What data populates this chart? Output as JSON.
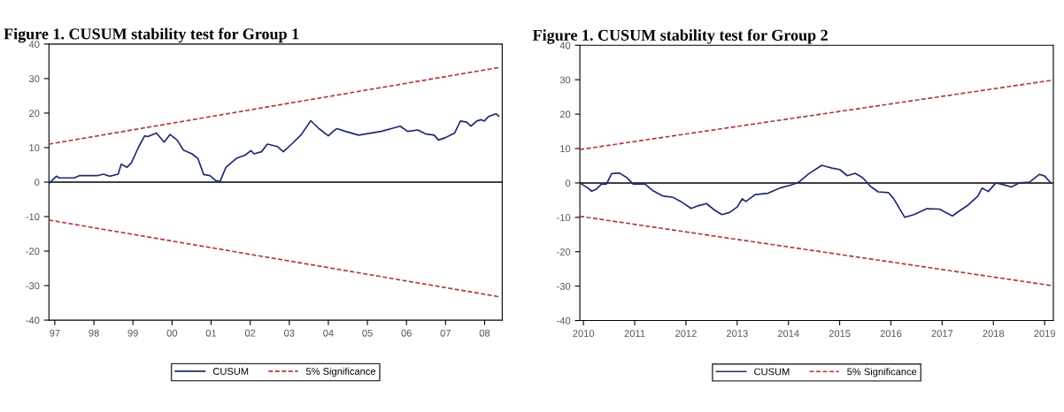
{
  "chart_data": [
    {
      "type": "line",
      "title": "Figure 1. CUSUM stability test for Group 1",
      "xlim": [
        1996.85,
        2008.45
      ],
      "xticks": [
        {
          "value": 1997,
          "label": "97"
        },
        {
          "value": 1998,
          "label": "98"
        },
        {
          "value": 1999,
          "label": "99"
        },
        {
          "value": 2000,
          "label": "00"
        },
        {
          "value": 2001,
          "label": "01"
        },
        {
          "value": 2002,
          "label": "02"
        },
        {
          "value": 2003,
          "label": "03"
        },
        {
          "value": 2004,
          "label": "04"
        },
        {
          "value": 2005,
          "label": "05"
        },
        {
          "value": 2006,
          "label": "06"
        },
        {
          "value": 2007,
          "label": "07"
        },
        {
          "value": 2008,
          "label": "08"
        }
      ],
      "ylim": [
        -40,
        40
      ],
      "yticks": [
        -40,
        -30,
        -20,
        -10,
        0,
        10,
        20,
        30,
        40
      ],
      "grid": false,
      "legend": "bottom",
      "marker": "none",
      "ref_lines": [
        {
          "axis": "y",
          "value": 0,
          "color": "#000000",
          "line_style": "solid"
        }
      ],
      "series": [
        {
          "name": "CUSUM",
          "color": "#1f2a6b",
          "line_style": "solid",
          "x": [
            1996.85,
            1997.04,
            1997.12,
            1997.49,
            1997.64,
            1998.1,
            1998.25,
            1998.4,
            1998.62,
            1998.7,
            1998.85,
            1998.96,
            1999.15,
            1999.3,
            1999.38,
            1999.6,
            1999.8,
            1999.95,
            2000.13,
            2000.29,
            2000.51,
            2000.66,
            2000.81,
            2000.97,
            2001.12,
            2001.23,
            2001.38,
            2001.65,
            2001.87,
            2002.02,
            2002.1,
            2002.29,
            2002.44,
            2002.7,
            2002.85,
            2003.08,
            2003.31,
            2003.55,
            2003.76,
            2004.0,
            2004.14,
            2004.22,
            2004.44,
            2004.78,
            2004.97,
            2005.35,
            2005.61,
            2005.84,
            2006.03,
            2006.29,
            2006.48,
            2006.71,
            2006.82,
            2007.0,
            2007.23,
            2007.38,
            2007.54,
            2007.65,
            2007.8,
            2007.91,
            2007.99,
            2008.1,
            2008.29,
            2008.36
          ],
          "values": [
            -0.4,
            1.7,
            1.2,
            1.2,
            1.9,
            1.9,
            2.3,
            1.7,
            2.3,
            5.2,
            4.3,
            5.6,
            10.3,
            13.4,
            13.2,
            14.2,
            11.6,
            13.8,
            12.2,
            9.3,
            8.2,
            6.9,
            2.2,
            1.9,
            0.4,
            0.2,
            4.3,
            6.9,
            7.8,
            9.1,
            8.2,
            8.8,
            11.0,
            10.3,
            8.8,
            11.2,
            13.8,
            17.8,
            15.5,
            13.4,
            14.9,
            15.5,
            14.7,
            13.6,
            14.0,
            14.7,
            15.5,
            16.2,
            14.7,
            15.1,
            14.0,
            13.6,
            12.2,
            12.9,
            14.2,
            17.7,
            17.4,
            16.2,
            17.7,
            18.1,
            17.7,
            19.0,
            19.8,
            19.1
          ]
        },
        {
          "name": "5% Significance",
          "color": "#b03a3a",
          "line_style": "dashed",
          "x": [
            1996.85,
            2008.36
          ],
          "values": [
            11.0,
            33.2
          ]
        },
        {
          "color": "#b03a3a",
          "line_style": "dashed",
          "x": [
            1996.85,
            2008.36
          ],
          "values": [
            -11.0,
            -33.2
          ]
        }
      ]
    },
    {
      "type": "line",
      "title": "Figure 1. CUSUM stability test for Group 2",
      "xlim": [
        2009.93,
        2019.17
      ],
      "xticks": [
        2010,
        2011,
        2012,
        2013,
        2014,
        2015,
        2016,
        2017,
        2018,
        2019
      ],
      "ylim": [
        -40,
        40
      ],
      "yticks": [
        -40,
        -30,
        -20,
        -10,
        0,
        10,
        20,
        30,
        40
      ],
      "grid": false,
      "legend": "bottom",
      "marker": "none",
      "ref_lines": [
        {
          "axis": "y",
          "value": 0,
          "color": "#000000",
          "line_style": "solid"
        }
      ],
      "series": [
        {
          "name": "CUSUM",
          "color": "#1f2a6b",
          "line_style": "solid",
          "x": [
            2009.93,
            2010.08,
            2010.16,
            2010.25,
            2010.35,
            2010.45,
            2010.55,
            2010.7,
            2010.85,
            2010.97,
            2011.2,
            2011.35,
            2011.55,
            2011.75,
            2011.9,
            2012.1,
            2012.25,
            2012.4,
            2012.55,
            2012.7,
            2012.85,
            2013.0,
            2013.1,
            2013.17,
            2013.35,
            2013.6,
            2013.85,
            2014.05,
            2014.2,
            2014.4,
            2014.65,
            2014.85,
            2015.0,
            2015.15,
            2015.3,
            2015.45,
            2015.6,
            2015.75,
            2015.95,
            2016.05,
            2016.27,
            2016.45,
            2016.7,
            2016.95,
            2017.1,
            2017.2,
            2017.35,
            2017.5,
            2017.7,
            2017.78,
            2017.9,
            2018.05,
            2018.2,
            2018.35,
            2018.5,
            2018.7,
            2018.9,
            2019.0,
            2019.12
          ],
          "values": [
            0,
            -1.4,
            -2.4,
            -1.8,
            -0.4,
            -0.3,
            2.7,
            2.9,
            1.5,
            -0.3,
            -0.3,
            -2.2,
            -3.8,
            -4.2,
            -5.4,
            -7.4,
            -6.6,
            -6.0,
            -7.8,
            -9.2,
            -8.6,
            -7.0,
            -4.6,
            -5.4,
            -3.4,
            -3.0,
            -1.4,
            -0.6,
            0.2,
            2.7,
            5.1,
            4.3,
            3.9,
            2.1,
            2.8,
            1.5,
            -1.0,
            -2.6,
            -2.8,
            -4.5,
            -10.0,
            -9.2,
            -7.5,
            -7.6,
            -8.8,
            -9.6,
            -8.0,
            -6.5,
            -3.8,
            -1.5,
            -2.5,
            0.0,
            -0.5,
            -1.2,
            0.0,
            0.2,
            2.5,
            2.0,
            0.0
          ]
        },
        {
          "name": "5% Significance",
          "color": "#b03a3a",
          "line_style": "dashed",
          "x": [
            2009.93,
            2019.12
          ],
          "values": [
            9.7,
            29.8
          ]
        },
        {
          "color": "#b03a3a",
          "line_style": "dashed",
          "x": [
            2009.93,
            2019.12
          ],
          "values": [
            -9.7,
            -29.8
          ]
        }
      ]
    }
  ]
}
